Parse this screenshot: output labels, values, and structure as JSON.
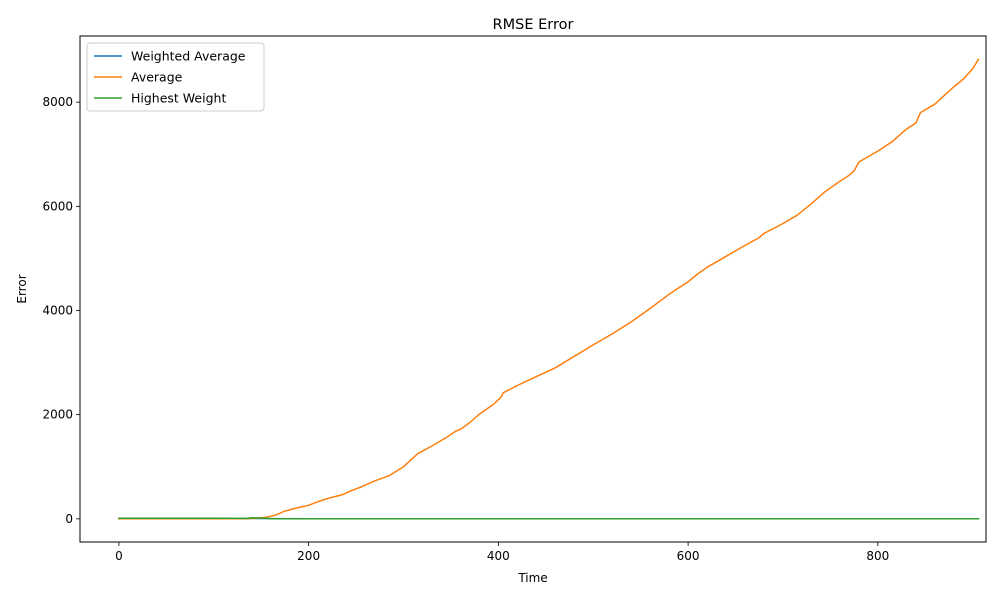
{
  "chart_data": {
    "type": "line",
    "title": "RMSE Error",
    "xlabel": "Time",
    "ylabel": "Error",
    "xlim": [
      -41,
      914
    ],
    "ylim": [
      -445,
      9270
    ],
    "xticks": [
      0,
      200,
      400,
      600,
      800
    ],
    "yticks": [
      0,
      2000,
      4000,
      6000,
      8000
    ],
    "grid": false,
    "legend_position": "top-left",
    "colors": {
      "Weighted Average": "#1f77b4",
      "Average": "#ff7f0e",
      "Highest Weight": "#2ca02c"
    },
    "series": [
      {
        "name": "Weighted Average",
        "x": [
          0,
          100,
          135,
          145,
          160,
          200,
          400,
          600,
          800,
          906
        ],
        "y": [
          2,
          3,
          5,
          8,
          5,
          3,
          2,
          2,
          2,
          2
        ]
      },
      {
        "name": "Average",
        "x": [
          0,
          50,
          100,
          130,
          145,
          155,
          165,
          175,
          190,
          200,
          210,
          220,
          235,
          245,
          255,
          270,
          285,
          300,
          315,
          330,
          345,
          355,
          360,
          370,
          380,
          395,
          403,
          405,
          420,
          440,
          460,
          480,
          500,
          520,
          540,
          560,
          580,
          600,
          610,
          620,
          640,
          660,
          675,
          680,
          700,
          715,
          730,
          745,
          760,
          770,
          775,
          780,
          800,
          815,
          830,
          840,
          845,
          860,
          870,
          880,
          890,
          900,
          906
        ],
        "y": [
          0,
          0,
          0,
          3,
          10,
          30,
          70,
          150,
          220,
          260,
          330,
          390,
          460,
          540,
          610,
          730,
          830,
          1000,
          1250,
          1400,
          1560,
          1680,
          1720,
          1850,
          2010,
          2200,
          2340,
          2420,
          2560,
          2730,
          2900,
          3120,
          3340,
          3550,
          3780,
          4040,
          4310,
          4550,
          4700,
          4830,
          5040,
          5250,
          5400,
          5480,
          5670,
          5830,
          6050,
          6290,
          6480,
          6600,
          6680,
          6850,
          7060,
          7240,
          7480,
          7600,
          7800,
          7960,
          8130,
          8290,
          8440,
          8640,
          8820
        ]
      },
      {
        "name": "Highest Weight",
        "x": [
          0,
          50,
          100,
          135,
          140,
          145,
          160,
          200,
          400,
          600,
          800,
          906
        ],
        "y": [
          10,
          10,
          10,
          8,
          20,
          18,
          5,
          3,
          2,
          2,
          2,
          2
        ]
      }
    ]
  }
}
